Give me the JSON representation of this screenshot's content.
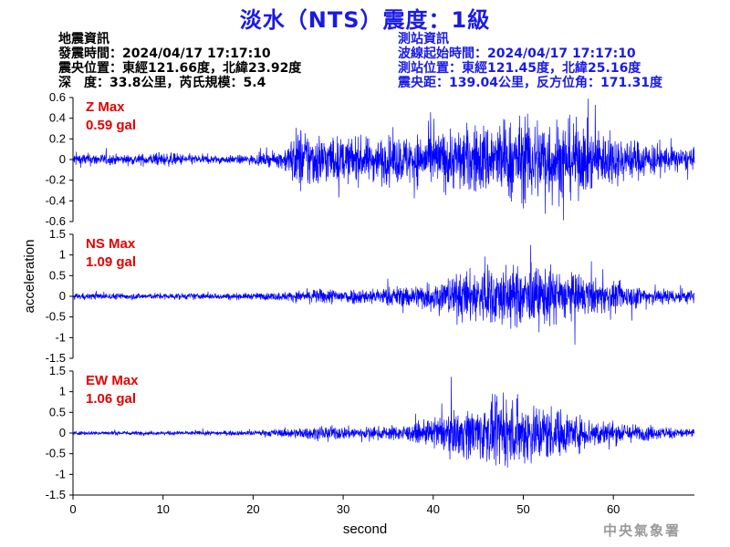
{
  "header": {
    "title": "淡水（NTS）震度：1級"
  },
  "quake_info": {
    "heading": "地震資訊",
    "time": "發震時間：2024/04/17 17:17:10",
    "epicenter": "震央位置：東經121.66度，北緯23.92度",
    "depth_magnitude": "深　度：33.8公里，芮氏規模：5.4"
  },
  "station_info": {
    "heading": "測站資訊",
    "wave_start": "波線起始時間：2024/04/17 17:17:10",
    "location": "測站位置：東經121.45度，北緯25.16度",
    "distance": "震央距：139.04公里，反方位角：171.31度"
  },
  "footer": {
    "agency": "中央氣象署"
  },
  "colors": {
    "trace": "#0000ff",
    "max_label": "#e60000",
    "title": "#1a1ae6"
  },
  "chart_data": {
    "type": "line",
    "xlabel": "second",
    "ylabel": "acceleration",
    "xlim": [
      0,
      69
    ],
    "x_ticks": [
      "0",
      "10",
      "20",
      "30",
      "40",
      "50",
      "60"
    ],
    "series": [
      {
        "name": "Z",
        "max_label": "Z Max",
        "max_value": "0.59 gal",
        "ylim": [
          -0.6,
          0.6
        ],
        "y_ticks": [
          "0.6",
          "0.4",
          "0.2",
          "0",
          "-0.2",
          "-0.4",
          "-0.6"
        ],
        "envelope_t": [
          0,
          3,
          6,
          10,
          14,
          17,
          20,
          23,
          24,
          25,
          27,
          30,
          33,
          37,
          40,
          43,
          46,
          50,
          52,
          55,
          58,
          61,
          64,
          66,
          69
        ],
        "envelope_a": [
          0.07,
          0.06,
          0.05,
          0.07,
          0.05,
          0.04,
          0.05,
          0.08,
          0.18,
          0.35,
          0.28,
          0.22,
          0.22,
          0.25,
          0.28,
          0.33,
          0.38,
          0.42,
          0.46,
          0.4,
          0.32,
          0.22,
          0.18,
          0.14,
          0.1
        ]
      },
      {
        "name": "NS",
        "max_label": "NS Max",
        "max_value": "1.09 gal",
        "ylim": [
          -1.5,
          1.5
        ],
        "y_ticks": [
          "1.5",
          "1",
          "0.5",
          "0",
          "-0.5",
          "-1",
          "-1.5"
        ],
        "envelope_t": [
          0,
          10,
          20,
          24,
          28,
          33,
          38,
          41,
          43,
          46,
          48,
          50,
          53,
          56,
          60,
          63,
          66,
          69
        ],
        "envelope_a": [
          0.08,
          0.08,
          0.08,
          0.12,
          0.2,
          0.2,
          0.3,
          0.45,
          0.6,
          0.75,
          0.8,
          0.72,
          0.75,
          0.55,
          0.35,
          0.28,
          0.2,
          0.18
        ]
      },
      {
        "name": "EW",
        "max_label": "EW Max",
        "max_value": "1.06 gal",
        "ylim": [
          -1.5,
          1.5
        ],
        "y_ticks": [
          "1.5",
          "1",
          "0.5",
          "0",
          "-0.5",
          "-1",
          "-1.5"
        ],
        "envelope_t": [
          0,
          10,
          20,
          24,
          28,
          33,
          38,
          41,
          43,
          46,
          48,
          50,
          53,
          56,
          60,
          63,
          66,
          69
        ],
        "envelope_a": [
          0.05,
          0.05,
          0.06,
          0.12,
          0.18,
          0.15,
          0.22,
          0.45,
          0.6,
          0.75,
          0.8,
          0.85,
          0.7,
          0.45,
          0.3,
          0.2,
          0.15,
          0.12
        ]
      }
    ]
  }
}
